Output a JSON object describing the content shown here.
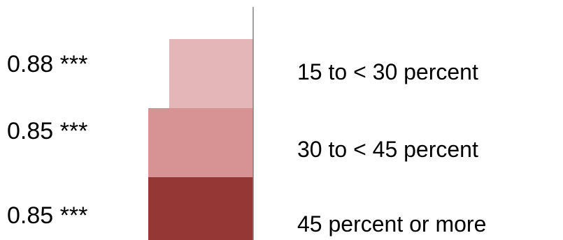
{
  "chart_data": {
    "type": "bar",
    "orientation": "horizontal",
    "categories": [
      "15 to < 30 percent",
      "30 to < 45 percent",
      "45 percent or more"
    ],
    "values": [
      0.88,
      0.85,
      0.85
    ],
    "value_labels": [
      "0.88 ***",
      "0.85 ***",
      "0.85 ***"
    ],
    "colors": [
      "#e5b6b8",
      "#d79294",
      "#953735"
    ],
    "axis_color": "#808080",
    "grid": false,
    "legend": "none",
    "title": "",
    "xlabel": "",
    "ylabel": ""
  }
}
